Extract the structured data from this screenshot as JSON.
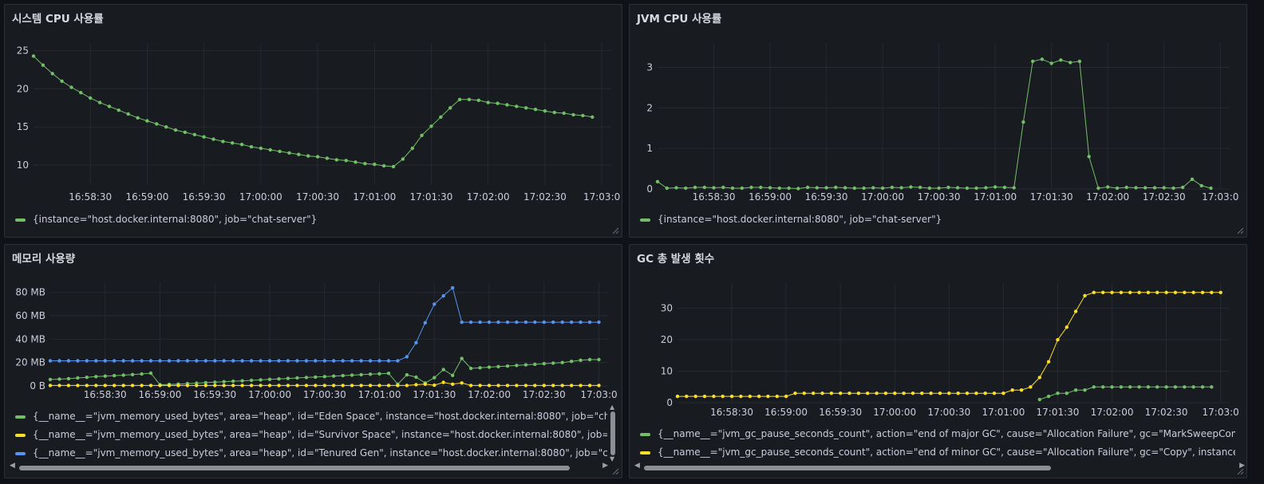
{
  "panels": [
    {
      "title": "시스템 CPU 사용률",
      "legend": [
        "{instance=\"host.docker.internal:8080\", job=\"chat-server\"}"
      ]
    },
    {
      "title": "JVM CPU 사용률",
      "legend": [
        "{instance=\"host.docker.internal:8080\", job=\"chat-server\"}"
      ]
    },
    {
      "title": "메모리 사용량",
      "legend": [
        "{__name__=\"jvm_memory_used_bytes\", area=\"heap\", id=\"Eden Space\", instance=\"host.docker.internal:8080\", job=\"chat-server\"}",
        "{__name__=\"jvm_memory_used_bytes\", area=\"heap\", id=\"Survivor Space\", instance=\"host.docker.internal:8080\", job=\"chat-server\"}",
        "{__name__=\"jvm_memory_used_bytes\", area=\"heap\", id=\"Tenured Gen\", instance=\"host.docker.internal:8080\", job=\"chat-server\"}"
      ]
    },
    {
      "title": "GC 총 발생 횟수",
      "legend": [
        "{__name__=\"jvm_gc_pause_seconds_count\", action=\"end of major GC\", cause=\"Allocation Failure\", gc=\"MarkSweepCompact\", instance=\"host.docker.internal:8080\", job=\"chat-server\"}",
        "{__name__=\"jvm_gc_pause_seconds_count\", action=\"end of minor GC\", cause=\"Allocation Failure\", gc=\"Copy\", instance=\"host.docker.internal:8080\", job=\"chat-server\"}"
      ]
    }
  ],
  "colors": {
    "green": "#73bf69",
    "yellow": "#fade2a",
    "blue": "#5794f2"
  },
  "chart_data": [
    {
      "type": "line",
      "title": "시스템 CPU 사용률",
      "x_ticks": [
        "16:58:30",
        "16:59:00",
        "16:59:30",
        "17:00:00",
        "17:00:30",
        "17:01:00",
        "17:01:30",
        "17:02:00",
        "17:02:30",
        "17:03:0"
      ],
      "x_range": [
        "16:58:00",
        "17:03:05"
      ],
      "y_ticks": [
        "10",
        "15",
        "20",
        "25"
      ],
      "ylim": [
        7.5,
        26
      ],
      "grid": true,
      "legend_position": "bottom",
      "series": [
        {
          "color": "#73bf69",
          "x_start": "16:58:00",
          "step_seconds": 5,
          "values": [
            24.3,
            23.1,
            22.0,
            21.0,
            20.2,
            19.5,
            18.8,
            18.2,
            17.7,
            17.2,
            16.7,
            16.2,
            15.8,
            15.4,
            15.0,
            14.6,
            14.3,
            14.0,
            13.7,
            13.4,
            13.1,
            12.9,
            12.7,
            12.4,
            12.2,
            12.0,
            11.8,
            11.6,
            11.4,
            11.2,
            11.1,
            10.9,
            10.7,
            10.6,
            10.4,
            10.2,
            10.1,
            9.9,
            9.8,
            10.8,
            12.2,
            13.9,
            15.1,
            16.3,
            17.5,
            18.6,
            18.6,
            18.5,
            18.2,
            18.1,
            17.9,
            17.7,
            17.5,
            17.3,
            17.1,
            16.9,
            16.8,
            16.6,
            16.5,
            16.3
          ]
        }
      ]
    },
    {
      "type": "line",
      "title": "JVM CPU 사용률",
      "x_ticks": [
        "16:58:30",
        "16:59:00",
        "16:59:30",
        "17:00:00",
        "17:00:30",
        "17:01:00",
        "17:01:30",
        "17:02:00",
        "17:02:30",
        "17:03:0"
      ],
      "x_range": [
        "16:58:00",
        "17:03:05"
      ],
      "y_ticks": [
        "0",
        "1",
        "2",
        "3"
      ],
      "ylim": [
        0,
        3.6
      ],
      "grid": true,
      "legend_position": "bottom",
      "series": [
        {
          "color": "#73bf69",
          "x_start": "16:58:00",
          "step_seconds": 5,
          "values": [
            0.18,
            0.02,
            0.03,
            0.02,
            0.04,
            0.04,
            0.03,
            0.04,
            0.02,
            0.02,
            0.04,
            0.04,
            0.03,
            0.02,
            0.02,
            0.01,
            0.04,
            0.03,
            0.03,
            0.04,
            0.03,
            0.02,
            0.02,
            0.03,
            0.02,
            0.04,
            0.03,
            0.05,
            0.04,
            0.02,
            0.02,
            0.04,
            0.03,
            0.02,
            0.02,
            0.03,
            0.05,
            0.04,
            0.03,
            1.65,
            3.15,
            3.2,
            3.1,
            3.18,
            3.12,
            3.15,
            0.8,
            0.02,
            0.05,
            0.02,
            0.04,
            0.03,
            0.03,
            0.03,
            0.03,
            0.02,
            0.04,
            0.24,
            0.08,
            0.02
          ]
        }
      ]
    },
    {
      "type": "line",
      "title": "메모리 사용량",
      "x_ticks": [
        "16:58:30",
        "16:59:00",
        "16:59:30",
        "17:00:00",
        "17:00:30",
        "17:01:00",
        "17:01:30",
        "17:02:00",
        "17:02:30",
        "17:03:0"
      ],
      "x_range": [
        "16:58:00",
        "17:03:05"
      ],
      "y_ticks": [
        "0 B",
        "20 MB",
        "40 MB",
        "60 MB",
        "80 MB"
      ],
      "ylim": [
        0,
        88
      ],
      "unit": "MB",
      "grid": true,
      "legend_position": "bottom",
      "series": [
        {
          "color": "#73bf69",
          "x_start": "16:58:00",
          "step_seconds": 5,
          "values": [
            5.5,
            5.8,
            6.2,
            6.8,
            7.4,
            8.0,
            8.4,
            8.8,
            9.2,
            9.7,
            10.2,
            10.9,
            1.0,
            1.3,
            1.6,
            2.0,
            2.4,
            2.8,
            3.2,
            3.6,
            4.0,
            4.4,
            4.8,
            5.2,
            5.6,
            6.0,
            6.4,
            6.8,
            7.2,
            7.6,
            8.0,
            8.4,
            8.8,
            9.2,
            9.6,
            10.0,
            10.4,
            10.8,
            1.5,
            9.5,
            7.5,
            2.5,
            7.0,
            14.0,
            9.0,
            23.5,
            15.0,
            15.5,
            16.0,
            16.5,
            17.0,
            17.5,
            18.0,
            18.5,
            19.0,
            19.5,
            20.0,
            21.0,
            22.0,
            22.5,
            22.5
          ]
        },
        {
          "color": "#fade2a",
          "x_start": "16:58:00",
          "step_seconds": 5,
          "values": [
            0.4,
            0.4,
            0.4,
            0.4,
            0.4,
            0.4,
            0.4,
            0.4,
            0.4,
            0.4,
            0.4,
            0.4,
            0.4,
            0.4,
            0.4,
            0.4,
            0.4,
            0.4,
            0.4,
            0.4,
            0.4,
            0.4,
            0.4,
            0.4,
            0.4,
            0.4,
            0.4,
            0.4,
            0.4,
            0.4,
            0.4,
            0.4,
            0.4,
            0.4,
            0.4,
            0.4,
            0.4,
            0.4,
            0.4,
            0.4,
            1.0,
            1.5,
            0.6,
            3.0,
            1.5,
            2.5,
            0.4,
            0.4,
            0.4,
            0.4,
            0.4,
            0.4,
            0.4,
            0.4,
            0.4,
            0.4,
            0.4,
            0.4,
            0.4,
            0.4,
            0.4
          ]
        },
        {
          "color": "#5794f2",
          "x_start": "16:58:00",
          "step_seconds": 5,
          "values": [
            21.5,
            21.5,
            21.5,
            21.5,
            21.5,
            21.5,
            21.5,
            21.5,
            21.5,
            21.5,
            21.5,
            21.5,
            21.5,
            21.5,
            21.5,
            21.5,
            21.5,
            21.5,
            21.5,
            21.5,
            21.5,
            21.5,
            21.5,
            21.5,
            21.5,
            21.5,
            21.5,
            21.5,
            21.5,
            21.5,
            21.5,
            21.5,
            21.5,
            21.5,
            21.5,
            21.5,
            21.5,
            21.5,
            21.5,
            25.0,
            37.0,
            54.0,
            70.0,
            77.0,
            84.0,
            54.5,
            54.5,
            54.5,
            54.5,
            54.5,
            54.5,
            54.5,
            54.5,
            54.5,
            54.5,
            54.5,
            54.5,
            54.5,
            54.5,
            54.5,
            54.5
          ]
        }
      ]
    },
    {
      "type": "line",
      "title": "GC 총 발생 횟수",
      "x_ticks": [
        "16:58:30",
        "16:59:00",
        "16:59:30",
        "17:00:00",
        "17:00:30",
        "17:01:00",
        "17:01:30",
        "17:02:00",
        "17:02:30",
        "17:03:0"
      ],
      "x_range": [
        "16:58:00",
        "17:03:05"
      ],
      "y_ticks": [
        "0",
        "10",
        "20",
        "30"
      ],
      "ylim": [
        0,
        38
      ],
      "grid": true,
      "legend_position": "bottom",
      "series": [
        {
          "color": "#73bf69",
          "x_start": "17:01:20",
          "step_seconds": 5,
          "values": [
            1,
            2,
            3,
            3,
            4,
            4,
            5,
            5,
            5,
            5,
            5,
            5,
            5,
            5,
            5,
            5,
            5,
            5,
            5,
            5
          ]
        },
        {
          "color": "#fade2a",
          "x_start": "16:58:00",
          "step_seconds": 5,
          "values": [
            2,
            2,
            2,
            2,
            2,
            2,
            2,
            2,
            2,
            2,
            2,
            2,
            2,
            3,
            3,
            3,
            3,
            3,
            3,
            3,
            3,
            3,
            3,
            3,
            3,
            3,
            3,
            3,
            3,
            3,
            3,
            3,
            3,
            3,
            3,
            3,
            3,
            4,
            4,
            5,
            8,
            13,
            20,
            24,
            29,
            34,
            35,
            35,
            35,
            35,
            35,
            35,
            35,
            35,
            35,
            35,
            35,
            35,
            35,
            35,
            35
          ]
        }
      ]
    }
  ]
}
